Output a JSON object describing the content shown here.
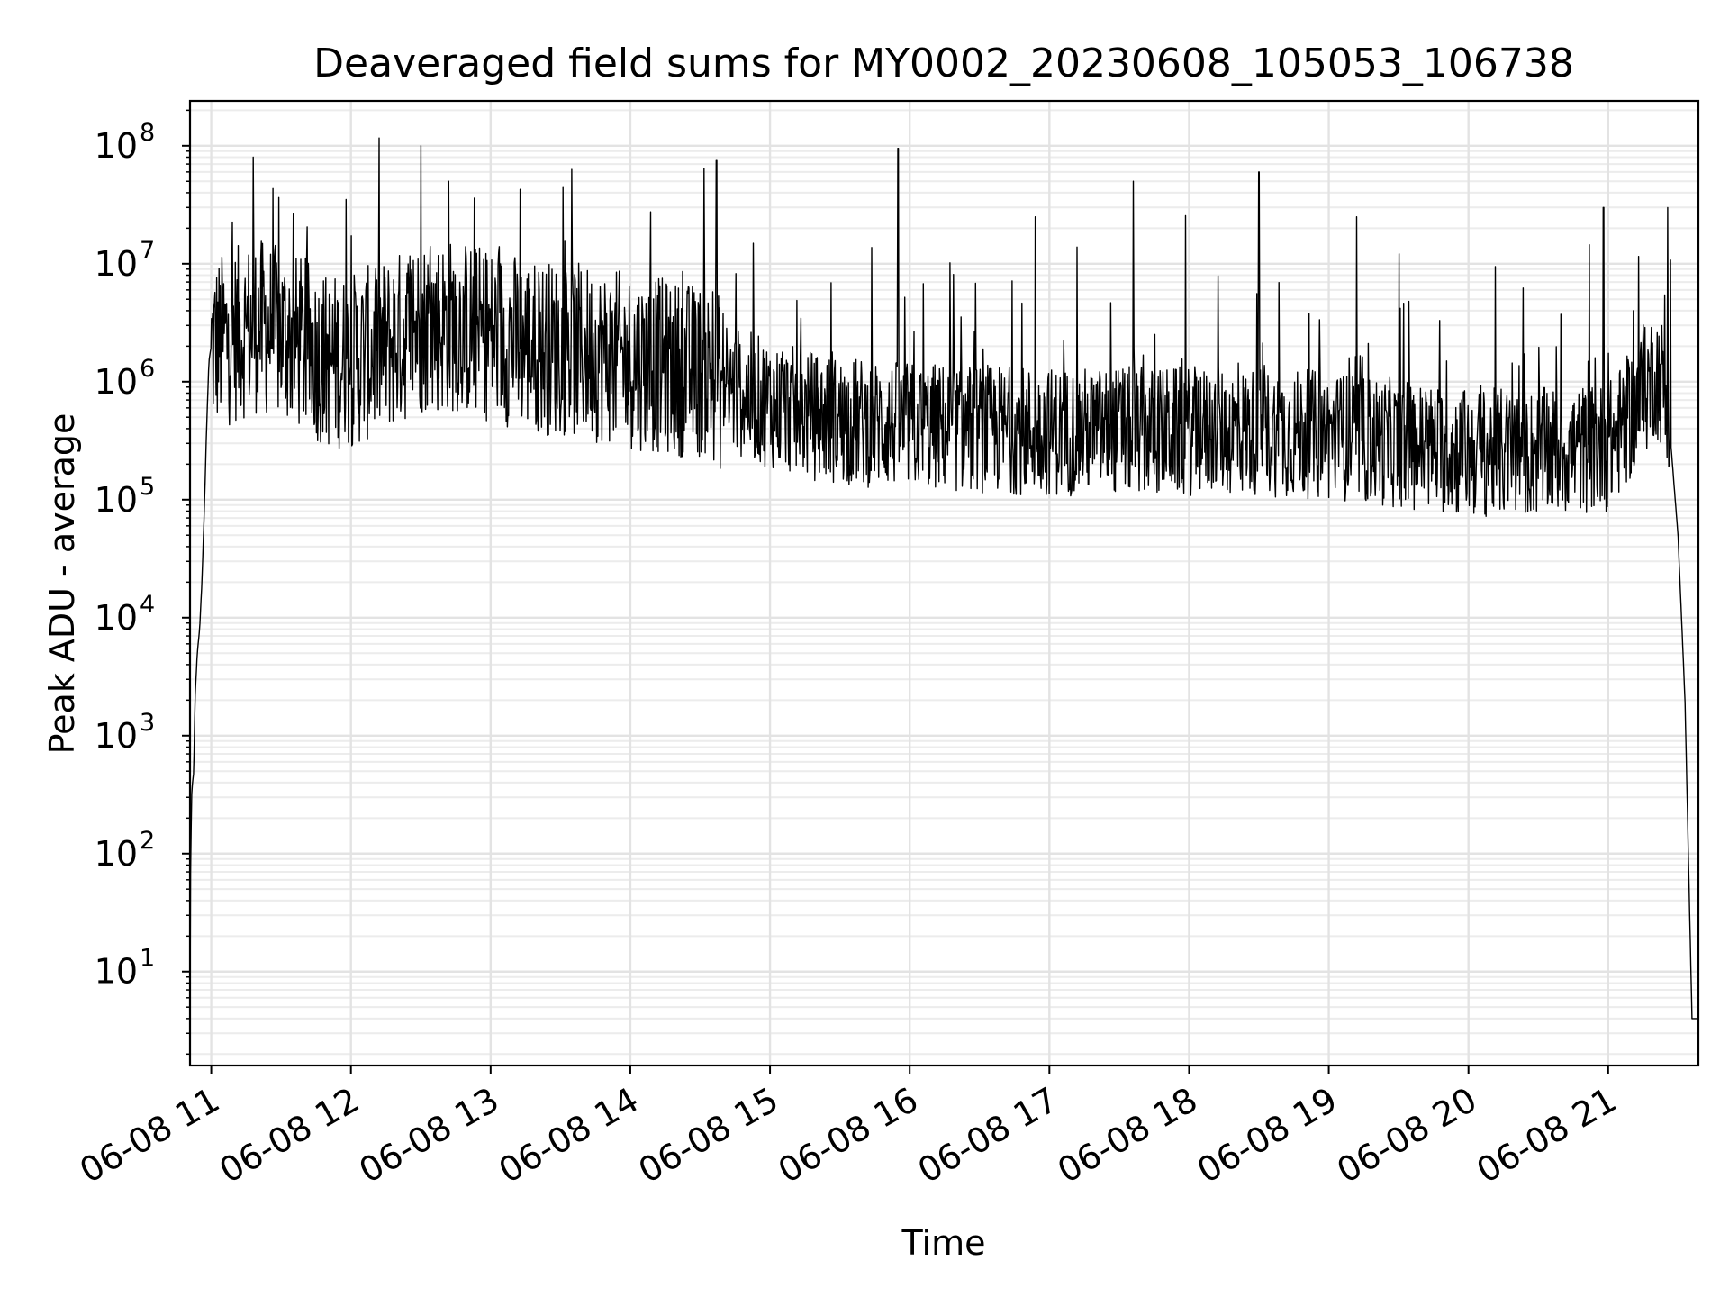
{
  "chart_data": {
    "type": "line",
    "title": "Deaveraged field sums for MY0002_20230608_105053_106738",
    "xlabel": "Time",
    "ylabel": "Peak ADU - average",
    "yscale": "log",
    "ylim": [
      1.6,
      240000000.0
    ],
    "xlim": [
      "2023-06-08 10:50:53",
      "2023-06-08 21:38:45"
    ],
    "grid": {
      "major": true,
      "minor": true
    },
    "x_ticks": [
      {
        "x": "2023-06-08 11:00",
        "label": "06-08 11"
      },
      {
        "x": "2023-06-08 12:00",
        "label": "06-08 12"
      },
      {
        "x": "2023-06-08 13:00",
        "label": "06-08 13"
      },
      {
        "x": "2023-06-08 14:00",
        "label": "06-08 14"
      },
      {
        "x": "2023-06-08 15:00",
        "label": "06-08 15"
      },
      {
        "x": "2023-06-08 16:00",
        "label": "06-08 16"
      },
      {
        "x": "2023-06-08 17:00",
        "label": "06-08 17"
      },
      {
        "x": "2023-06-08 18:00",
        "label": "06-08 18"
      },
      {
        "x": "2023-06-08 19:00",
        "label": "06-08 19"
      },
      {
        "x": "2023-06-08 20:00",
        "label": "06-08 20"
      },
      {
        "x": "2023-06-08 21:00",
        "label": "06-08 21"
      }
    ],
    "y_ticks": [
      {
        "value": 10,
        "base": "10",
        "exp": "1"
      },
      {
        "value": 100,
        "base": "10",
        "exp": "2"
      },
      {
        "value": 1000,
        "base": "10",
        "exp": "3"
      },
      {
        "value": 10000,
        "base": "10",
        "exp": "4"
      },
      {
        "value": 100000,
        "base": "10",
        "exp": "5"
      },
      {
        "value": 1000000,
        "base": "10",
        "exp": "6"
      },
      {
        "value": 10000000,
        "base": "10",
        "exp": "7"
      },
      {
        "value": 100000000,
        "base": "10",
        "exp": "8"
      }
    ],
    "series": [
      {
        "color": "#000000",
        "points": [
          [
            "2023-06-08 10:50:53",
            4
          ],
          [
            "2023-06-08 10:51:10",
            100
          ],
          [
            "2023-06-08 10:51:40",
            350
          ],
          [
            "2023-06-08 10:52:30",
            500
          ],
          [
            "2023-06-08 10:53:00",
            2000
          ],
          [
            "2023-06-08 10:54:00",
            5000
          ],
          [
            "2023-06-08 10:55:00",
            8000
          ],
          [
            "2023-06-08 10:56:00",
            20000
          ],
          [
            "2023-06-08 10:57:00",
            80000
          ],
          [
            "2023-06-08 10:58:00",
            400000
          ],
          [
            "2023-06-08 10:59:00",
            1500000
          ],
          [
            "2023-06-08 11:00",
            2000000
          ],
          [
            "2023-06-08 11:10",
            2500000
          ],
          [
            "2023-06-08 11:20",
            3000000
          ],
          [
            "2023-06-08 11:30",
            2500000
          ],
          [
            "2023-06-08 11:40",
            2000000
          ],
          [
            "2023-06-08 11:50",
            1500000
          ],
          [
            "2023-06-08 12:00",
            1500000
          ],
          [
            "2023-06-08 12:15",
            2000000
          ],
          [
            "2023-06-08 12:30",
            3000000
          ],
          [
            "2023-06-08 12:45",
            3000000
          ],
          [
            "2023-06-08 13:00",
            2500000
          ],
          [
            "2023-06-08 13:20",
            2000000
          ],
          [
            "2023-06-08 13:40",
            1800000
          ],
          [
            "2023-06-08 14:00",
            1500000
          ],
          [
            "2023-06-08 14:20",
            1300000
          ],
          [
            "2023-06-08 14:35",
            1200000
          ],
          [
            "2023-06-08 14:40",
            900000
          ],
          [
            "2023-06-08 15:00",
            650000
          ],
          [
            "2023-06-08 15:20",
            500000
          ],
          [
            "2023-06-08 15:40",
            450000
          ],
          [
            "2023-06-08 16:00",
            420000
          ],
          [
            "2023-06-08 16:30",
            400000
          ],
          [
            "2023-06-08 17:00",
            380000
          ],
          [
            "2023-06-08 17:30",
            380000
          ],
          [
            "2023-06-08 18:00",
            380000
          ],
          [
            "2023-06-08 18:30",
            380000
          ],
          [
            "2023-06-08 19:00",
            350000
          ],
          [
            "2023-06-08 19:30",
            300000
          ],
          [
            "2023-06-08 20:00",
            250000
          ],
          [
            "2023-06-08 20:30",
            250000
          ],
          [
            "2023-06-08 21:00",
            280000
          ],
          [
            "2023-06-08 21:12",
            600000
          ],
          [
            "2023-06-08 21:20",
            1200000
          ],
          [
            "2023-06-08 21:25",
            900000
          ],
          [
            "2023-06-08 21:30",
            50000
          ],
          [
            "2023-06-08 21:33",
            2000
          ],
          [
            "2023-06-08 21:36",
            4
          ],
          [
            "2023-06-08 21:38:45",
            4
          ]
        ]
      }
    ],
    "spikes": [
      [
        "2023-06-08 11:18",
        80000000
      ],
      [
        "2023-06-08 11:58",
        35000000
      ],
      [
        "2023-06-08 12:30",
        100000000
      ],
      [
        "2023-06-08 12:42",
        50000000
      ],
      [
        "2023-06-08 14:37",
        75000000
      ],
      [
        "2023-06-08 15:55",
        95000000
      ],
      [
        "2023-06-08 16:54",
        25000000
      ],
      [
        "2023-06-08 17:36",
        50000000
      ],
      [
        "2023-06-08 18:30",
        60000000
      ],
      [
        "2023-06-08 19:12",
        25000000
      ],
      [
        "2023-06-08 20:58",
        30000000
      ]
    ]
  }
}
